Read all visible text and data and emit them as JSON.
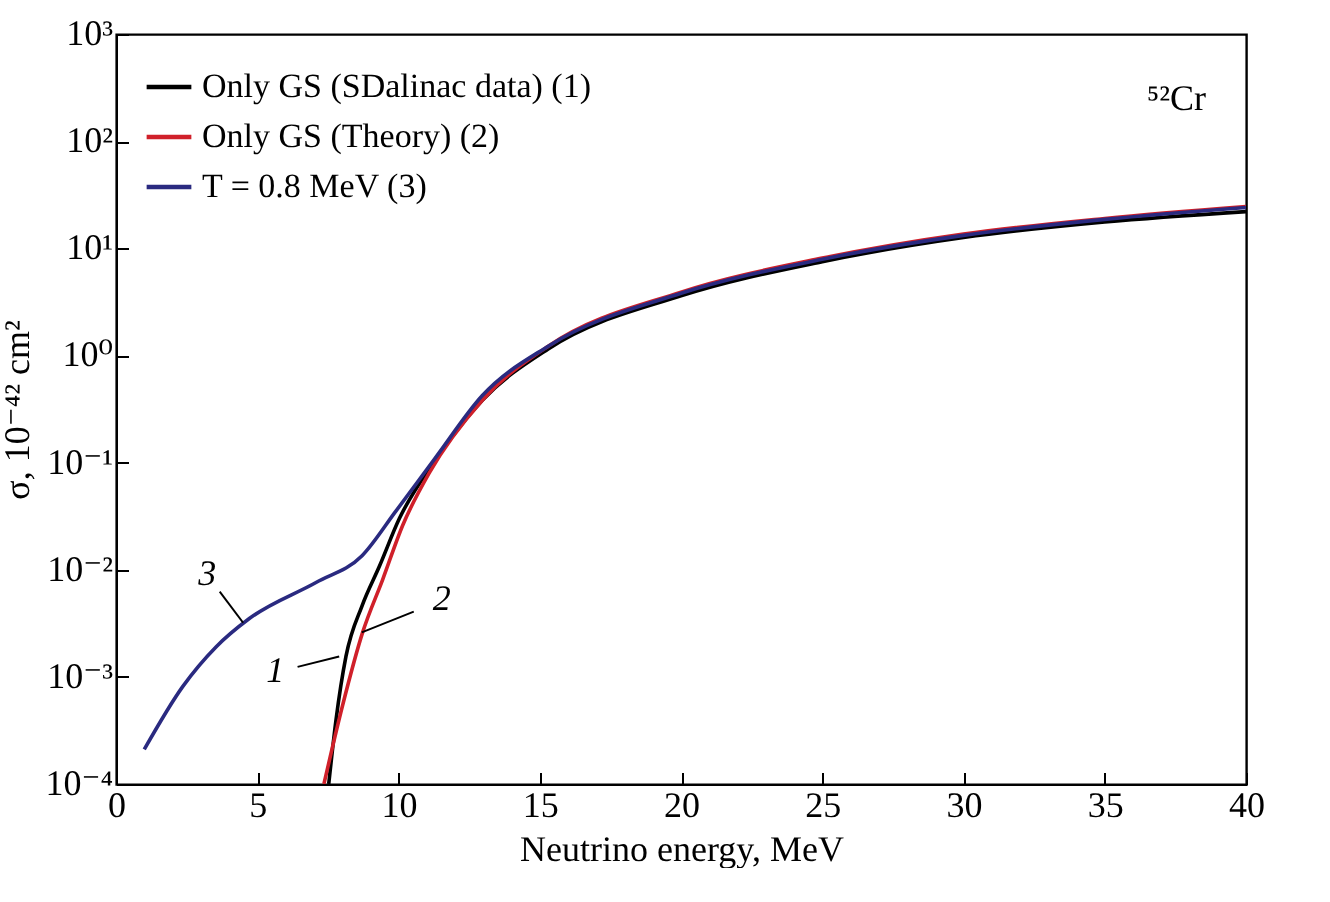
{
  "chart_data": {
    "type": "line",
    "xlabel": "Neutrino energy, MeV",
    "ylabel": "σ, 10⁻⁴² cm²",
    "log": "y",
    "grid": false,
    "legend": "top left",
    "line_style": "solid",
    "marker": "none",
    "xlim": [
      0,
      40
    ],
    "xticks": [
      0,
      5,
      10,
      15,
      20,
      25,
      30,
      35,
      40
    ],
    "ylim": [
      0.0001,
      1000
    ],
    "yticks": [
      {
        "value": 0.0001,
        "label": "10⁻⁴"
      },
      {
        "value": 0.001,
        "label": "10⁻³"
      },
      {
        "value": 0.01,
        "label": "10⁻²"
      },
      {
        "value": 0.1,
        "label": "10⁻¹"
      },
      {
        "value": 1,
        "label": "10⁰"
      },
      {
        "value": 10,
        "label": "10¹"
      },
      {
        "value": 100,
        "label": "10²"
      },
      {
        "value": 1000,
        "label": "10³"
      }
    ],
    "series": [
      {
        "name": "Only GS (SDalinac data) (1)",
        "color": "#000000",
        "x": [
          7.53,
          7.79,
          8.14,
          8.71,
          9.32,
          10.03,
          11.3,
          12.96,
          15.3,
          20,
          25,
          30,
          35,
          40
        ],
        "values": [
          0.0001,
          0.0004,
          0.00155,
          0.0046,
          0.0107,
          0.03,
          0.105,
          0.38,
          1.15,
          3.6,
          7.5,
          12.6,
          17.6,
          22
        ]
      },
      {
        "name": "Only GS (Theory) (2)",
        "color": "#d0202a",
        "x": [
          7.36,
          8.02,
          8.73,
          9.44,
          10.15,
          11.1,
          12.96,
          15.3,
          20,
          25,
          30,
          35,
          40
        ],
        "values": [
          0.0001,
          0.00054,
          0.0026,
          0.0081,
          0.026,
          0.081,
          0.38,
          1.22,
          3.9,
          8.1,
          13.6,
          19,
          24.5
        ]
      },
      {
        "name": "T = 0.8 MeV (3)",
        "color": "#2a2a80",
        "x": [
          1,
          2.36,
          3.54,
          4.72,
          7.08,
          8.71,
          9.9,
          11.3,
          12.96,
          15.3,
          20,
          25,
          30,
          35,
          40
        ],
        "values": [
          0.00021,
          0.00081,
          0.0019,
          0.0035,
          0.0076,
          0.0135,
          0.035,
          0.11,
          0.42,
          1.22,
          3.8,
          7.9,
          13.2,
          18.6,
          24
        ]
      }
    ],
    "annotations": [
      "⁵²Cr",
      {
        "text": "1",
        "x": 7.9,
        "y": 0.00155
      },
      {
        "text": "2",
        "x": 8.7,
        "y": 0.0026
      },
      {
        "text": "3",
        "x": 4.5,
        "y": 0.0032
      }
    ]
  }
}
